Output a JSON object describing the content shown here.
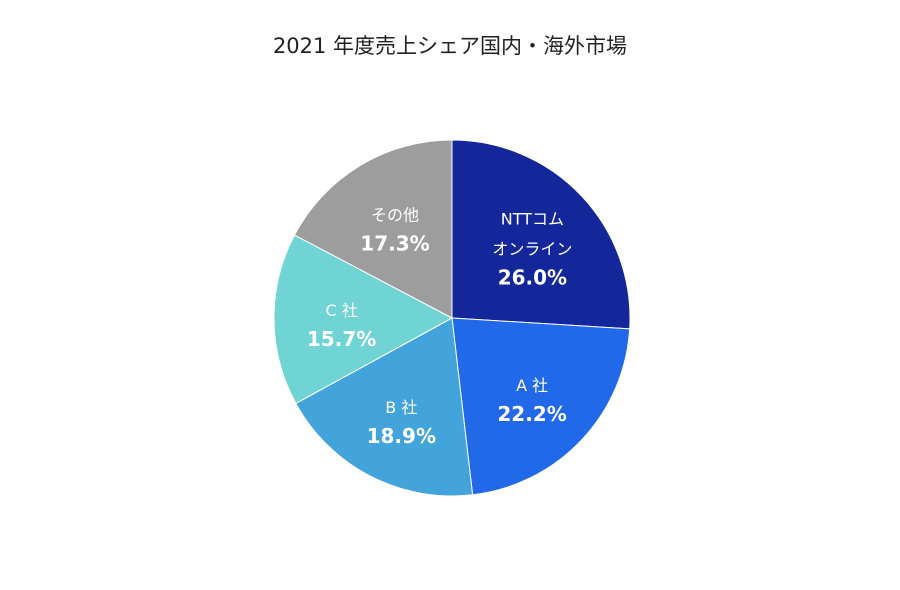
{
  "chart_data": {
    "type": "pie",
    "title": "2021 年度売上シェア国内・海外市場",
    "slices": [
      {
        "label_lines": [
          "NTTコム",
          "オンライン"
        ],
        "value": 26.0,
        "value_text": "26.0%",
        "color": "#13279a"
      },
      {
        "label_lines": [
          "A 社"
        ],
        "value": 22.2,
        "value_text": "22.2%",
        "color": "#2169e8"
      },
      {
        "label_lines": [
          "B 社"
        ],
        "value": 18.9,
        "value_text": "18.9%",
        "color": "#43a4db"
      },
      {
        "label_lines": [
          "C 社"
        ],
        "value": 15.7,
        "value_text": "15.7%",
        "color": "#70d4d4"
      },
      {
        "label_lines": [
          "その他"
        ],
        "value": 17.3,
        "value_text": "17.3%",
        "color": "#9d9d9d"
      }
    ],
    "start": "12 o'clock",
    "direction": "clockwise",
    "legend": "none"
  }
}
